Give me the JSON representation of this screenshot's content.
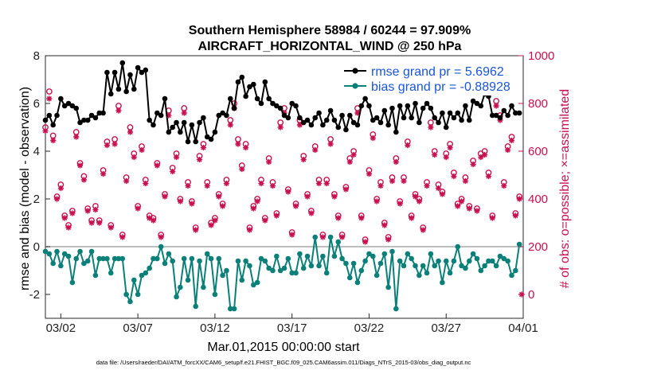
{
  "chart_data": {
    "type": "line",
    "title": "Southern Hemisphere 58984 / 60244 = 97.909%",
    "subtitle": "AIRCRAFT_HORIZONTAL_WIND @ 250 hPa",
    "xlabel": "Mar.01,2015 00:00:00 start",
    "ylabel": "rmse and bias (model - observation)",
    "ylabel_right": "# of obs: o=possible; ×=assimilated",
    "footer": "data file: /Users/raeder/DAI/ATM_forcXX/CAM6_setup/f.e21.FHIST_BGC.f09_025.CAM6assim.011/Diags_NTrS_2015-03/obs_diag_output.nc",
    "xlim": [
      0,
      31
    ],
    "ylim": [
      -3,
      8
    ],
    "ylim_right": [
      -100,
      1000
    ],
    "x_ticks": [
      1,
      6,
      11,
      16,
      21,
      26,
      31
    ],
    "x_tick_labels": [
      "03/02",
      "03/07",
      "03/12",
      "03/17",
      "03/22",
      "03/27",
      "04/01"
    ],
    "y_ticks": [
      -2,
      0,
      2,
      4,
      6,
      8
    ],
    "y_tick_labels": [
      "-2",
      "0",
      "2",
      "4",
      "6",
      "8"
    ],
    "y_right_ticks": [
      0,
      200,
      400,
      600,
      800,
      1000
    ],
    "y_right_tick_labels": [
      "0",
      "200",
      "400",
      "600",
      "800",
      "1000"
    ],
    "zero_line": 0,
    "legend_position": "top-right",
    "colors": {
      "rmse": "#000000",
      "bias": "#0b8078",
      "obs": "#c8104f",
      "legend_text": "#1a55d6",
      "zero_line": "#a8a8a8"
    },
    "series": [
      {
        "name": "rmse",
        "legend_label": "rmse grand pr = 5.6962",
        "x": [
          0.0,
          0.25,
          0.5,
          0.75,
          1.0,
          1.25,
          1.5,
          1.75,
          2.0,
          2.25,
          2.5,
          2.75,
          3.0,
          3.25,
          3.5,
          3.75,
          4.0,
          4.25,
          4.5,
          4.75,
          5.0,
          5.25,
          5.5,
          5.75,
          6.0,
          6.25,
          6.5,
          6.75,
          7.0,
          7.25,
          7.5,
          7.75,
          8.0,
          8.25,
          8.5,
          8.75,
          9.0,
          9.25,
          9.5,
          9.75,
          10.0,
          10.25,
          10.5,
          10.75,
          11.0,
          11.25,
          11.5,
          11.75,
          12.0,
          12.25,
          12.5,
          12.75,
          13.0,
          13.25,
          13.5,
          13.75,
          14.0,
          14.25,
          14.5,
          14.75,
          15.0,
          15.25,
          15.5,
          15.75,
          16.0,
          16.25,
          16.5,
          16.75,
          17.0,
          17.25,
          17.5,
          17.75,
          18.0,
          18.25,
          18.5,
          18.75,
          19.0,
          19.25,
          19.5,
          19.75,
          20.0,
          20.25,
          20.5,
          20.75,
          21.0,
          21.25,
          21.5,
          21.75,
          22.0,
          22.25,
          22.5,
          22.75,
          23.0,
          23.25,
          23.5,
          23.75,
          24.0,
          24.25,
          24.5,
          24.75,
          25.0,
          25.25,
          25.5,
          25.75,
          26.0,
          26.25,
          26.5,
          26.75,
          27.0,
          27.25,
          27.5,
          27.75,
          28.0,
          28.25,
          28.5,
          28.75,
          29.0,
          29.25,
          29.5,
          29.75,
          30.0,
          30.25,
          30.5,
          30.75
        ],
        "y": [
          5.3,
          5.5,
          5.1,
          5.5,
          6.2,
          5.9,
          6.0,
          5.9,
          5.8,
          5.2,
          5.3,
          5.3,
          5.5,
          5.4,
          5.6,
          5.6,
          7.3,
          6.4,
          7.3,
          6.6,
          7.7,
          6.5,
          7.2,
          6.6,
          7.5,
          7.3,
          7.4,
          5.3,
          5.1,
          5.6,
          5.5,
          6.2,
          4.8,
          5.0,
          5.2,
          4.8,
          5.2,
          4.4,
          5.1,
          4.4,
          5.2,
          5.4,
          4.6,
          4.5,
          4.8,
          5.5,
          5.6,
          5.5,
          6.2,
          5.8,
          6.9,
          7.1,
          6.3,
          6.7,
          6.8,
          6.2,
          6.0,
          6.9,
          6.2,
          6.0,
          5.9,
          5.8,
          5.5,
          5.4,
          6.0,
          5.9,
          5.4,
          5.2,
          5.3,
          5.1,
          5.4,
          5.6,
          5.1,
          5.3,
          5.7,
          5.3,
          5.0,
          5.5,
          4.9,
          5.5,
          5.2,
          5.1,
          5.9,
          6.2,
          5.9,
          5.3,
          5.4,
          5.2,
          5.7,
          5.1,
          5.8,
          4.8,
          5.9,
          5.4,
          5.9,
          5.4,
          6.0,
          5.2,
          5.8,
          6.0,
          5.8,
          5.4,
          5.2,
          5.6,
          5.0,
          5.6,
          5.4,
          5.6,
          5.3,
          5.9,
          5.3,
          6.1,
          6.0,
          5.9,
          6.4,
          6.3,
          5.5,
          5.5,
          5.4,
          5.7,
          5.5,
          5.9,
          5.6,
          5.6
        ],
        "marker": "filled-circle"
      },
      {
        "name": "bias",
        "legend_label": "bias grand pr = -0.88928",
        "x": [
          0.0,
          0.25,
          0.5,
          0.75,
          1.0,
          1.25,
          1.5,
          1.75,
          2.0,
          2.25,
          2.5,
          2.75,
          3.0,
          3.25,
          3.5,
          3.75,
          4.0,
          4.25,
          4.5,
          4.75,
          5.0,
          5.25,
          5.5,
          5.75,
          6.0,
          6.25,
          6.5,
          6.75,
          7.0,
          7.25,
          7.5,
          7.75,
          8.0,
          8.25,
          8.5,
          8.75,
          9.0,
          9.25,
          9.5,
          9.75,
          10.0,
          10.25,
          10.5,
          10.75,
          11.0,
          11.25,
          11.5,
          11.75,
          12.0,
          12.25,
          12.5,
          12.75,
          13.0,
          13.25,
          13.5,
          13.75,
          14.0,
          14.25,
          14.5,
          14.75,
          15.0,
          15.25,
          15.5,
          15.75,
          16.0,
          16.25,
          16.5,
          16.75,
          17.0,
          17.25,
          17.5,
          17.75,
          18.0,
          18.25,
          18.5,
          18.75,
          19.0,
          19.25,
          19.5,
          19.75,
          20.0,
          20.25,
          20.5,
          20.75,
          21.0,
          21.25,
          21.5,
          21.75,
          22.0,
          22.25,
          22.5,
          22.75,
          23.0,
          23.25,
          23.5,
          23.75,
          24.0,
          24.25,
          24.5,
          24.75,
          25.0,
          25.25,
          25.5,
          25.75,
          26.0,
          26.25,
          26.5,
          26.75,
          27.0,
          27.25,
          27.5,
          27.75,
          28.0,
          28.25,
          28.5,
          28.75,
          29.0,
          29.25,
          29.5,
          29.75,
          30.0,
          30.25,
          30.5,
          30.75
        ],
        "y": [
          -0.2,
          -0.3,
          -0.7,
          -0.2,
          -0.8,
          -0.3,
          -0.4,
          -1.5,
          -0.5,
          -0.2,
          -0.7,
          -0.6,
          -0.2,
          -1.2,
          -0.5,
          -0.5,
          -0.5,
          -1.1,
          -0.5,
          -0.5,
          -0.5,
          -2.0,
          -2.3,
          -1.4,
          -2.0,
          -1.2,
          -1.1,
          -0.9,
          -0.5,
          -0.5,
          0.0,
          -0.7,
          -0.3,
          -0.6,
          -2.1,
          -1.7,
          -0.5,
          -1.4,
          -0.5,
          -2.5,
          -0.6,
          -1.7,
          -0.3,
          -0.5,
          -2.0,
          -0.5,
          -1.2,
          -1.0,
          -2.6,
          -2.6,
          -0.6,
          -1.4,
          -0.6,
          -0.8,
          -1.6,
          -1.5,
          -0.5,
          -0.6,
          -0.9,
          -1.0,
          -0.4,
          -1.0,
          -0.9,
          -0.5,
          -1.1,
          -1.1,
          -0.3,
          -0.9,
          -0.4,
          -0.8,
          0.4,
          -0.8,
          -0.4,
          -1.1,
          0.4,
          -0.4,
          0.2,
          -0.5,
          -0.7,
          -1.3,
          -0.7,
          -1.5,
          -1.0,
          -0.6,
          -0.3,
          -0.4,
          -1.2,
          -0.7,
          -0.3,
          -1.7,
          -0.2,
          -2.6,
          -0.6,
          -0.8,
          -0.3,
          -0.5,
          -0.8,
          -1.2,
          -0.8,
          -1.1,
          -0.3,
          -0.8,
          -0.6,
          -1.5,
          -0.6,
          -1.1,
          -0.6,
          0.0,
          -0.8,
          -0.9,
          -0.6,
          -0.3,
          -0.5,
          -1.0,
          -0.8,
          -0.6,
          -0.6,
          -0.8,
          -0.4,
          -0.5,
          -0.6,
          -1.2,
          -1.0,
          0.1
        ],
        "marker": "filled-circle"
      },
      {
        "name": "obs possible",
        "axis": "right",
        "x": [
          0.0,
          0.25,
          0.5,
          0.75,
          1.0,
          1.25,
          1.5,
          1.75,
          2.0,
          2.25,
          2.5,
          2.75,
          3.0,
          3.25,
          3.5,
          3.75,
          4.0,
          4.25,
          4.5,
          4.75,
          5.0,
          5.25,
          5.5,
          5.75,
          6.0,
          6.25,
          6.5,
          6.75,
          7.0,
          7.25,
          7.5,
          7.75,
          8.0,
          8.25,
          8.5,
          8.75,
          9.0,
          9.25,
          9.5,
          9.75,
          10.0,
          10.25,
          10.5,
          10.75,
          11.0,
          11.25,
          11.5,
          11.75,
          12.0,
          12.25,
          12.5,
          12.75,
          13.0,
          13.25,
          13.5,
          13.75,
          14.0,
          14.25,
          14.5,
          14.75,
          15.0,
          15.25,
          15.5,
          15.75,
          16.0,
          16.25,
          16.5,
          16.75,
          17.0,
          17.25,
          17.5,
          17.75,
          18.0,
          18.25,
          18.5,
          18.75,
          19.0,
          19.25,
          19.5,
          19.75,
          20.0,
          20.25,
          20.5,
          20.75,
          21.0,
          21.25,
          21.5,
          21.75,
          22.0,
          22.25,
          22.5,
          22.75,
          23.0,
          23.25,
          23.5,
          23.75,
          24.0,
          24.25,
          24.5,
          24.75,
          25.0,
          25.25,
          25.5,
          25.75,
          26.0,
          26.25,
          26.5,
          26.75,
          27.0,
          27.25,
          27.5,
          27.75,
          28.0,
          28.25,
          28.5,
          28.75,
          29.0,
          29.25,
          29.5,
          29.75,
          30.0,
          30.25,
          30.5,
          30.75
        ],
        "y": [
          700,
          850,
          665,
          410,
          460,
          330,
          290,
          350,
          680,
          550,
          495,
          360,
          310,
          370,
          310,
          520,
          640,
          290,
          650,
          790,
          250,
          490,
          700,
          590,
          370,
          620,
          480,
          330,
          320,
          550,
          250,
          420,
          770,
          530,
          590,
          400,
          780,
          470,
          390,
          280,
          580,
          630,
          470,
          300,
          320,
          420,
          380,
          480,
          730,
          800,
          650,
          540,
          630,
          280,
          370,
          400,
          480,
          320,
          570,
          470,
          340,
          720,
          780,
          440,
          260,
          380,
          730,
          580,
          420,
          350,
          620,
          480,
          250,
          480,
          650,
          420,
          330,
          250,
          450,
          570,
          600,
          780,
          330,
          230,
          520,
          670,
          400,
          470,
          300,
          240,
          490,
          570,
          390,
          490,
          640,
          330,
          420,
          400,
          280,
          470,
          720,
          600,
          460,
          430,
          590,
          630,
          510,
          380,
          400,
          490,
          370,
          560,
          360,
          590,
          600,
          510,
          330,
          810,
          750,
          470,
          620,
          660,
          340,
          410
        ],
        "marker": "open-circle"
      },
      {
        "name": "obs assimilated",
        "axis": "right",
        "x": [
          0.0,
          0.25,
          0.5,
          0.75,
          1.0,
          1.25,
          1.5,
          1.75,
          2.0,
          2.25,
          2.5,
          2.75,
          3.0,
          3.25,
          3.5,
          3.75,
          4.0,
          4.25,
          4.5,
          4.75,
          5.0,
          5.25,
          5.5,
          5.75,
          6.0,
          6.25,
          6.5,
          6.75,
          7.0,
          7.25,
          7.5,
          7.75,
          8.0,
          8.25,
          8.5,
          8.75,
          9.0,
          9.25,
          9.5,
          9.75,
          10.0,
          10.25,
          10.5,
          10.75,
          11.0,
          11.25,
          11.5,
          11.75,
          12.0,
          12.25,
          12.5,
          12.75,
          13.0,
          13.25,
          13.5,
          13.75,
          14.0,
          14.25,
          14.5,
          14.75,
          15.0,
          15.25,
          15.5,
          15.75,
          16.0,
          16.25,
          16.5,
          16.75,
          17.0,
          17.25,
          17.5,
          17.75,
          18.0,
          18.25,
          18.5,
          18.75,
          19.0,
          19.25,
          19.5,
          19.75,
          20.0,
          20.25,
          20.5,
          20.75,
          21.0,
          21.25,
          21.5,
          21.75,
          22.0,
          22.25,
          22.5,
          22.75,
          23.0,
          23.25,
          23.5,
          23.75,
          24.0,
          24.25,
          24.5,
          24.75,
          25.0,
          25.25,
          25.5,
          25.75,
          26.0,
          26.25,
          26.5,
          26.75,
          27.0,
          27.25,
          27.5,
          27.75,
          28.0,
          28.25,
          28.5,
          28.75,
          29.0,
          29.25,
          29.5,
          29.75,
          30.0,
          30.25,
          30.5,
          30.75
        ],
        "y": [
          685,
          820,
          645,
          400,
          445,
          320,
          280,
          340,
          660,
          540,
          480,
          350,
          300,
          355,
          300,
          505,
          625,
          280,
          630,
          770,
          240,
          475,
          680,
          575,
          360,
          605,
          465,
          320,
          310,
          540,
          240,
          410,
          750,
          515,
          575,
          390,
          760,
          455,
          380,
          270,
          565,
          615,
          455,
          290,
          310,
          410,
          370,
          465,
          710,
          780,
          630,
          525,
          615,
          270,
          360,
          390,
          465,
          310,
          555,
          455,
          330,
          700,
          760,
          430,
          250,
          370,
          710,
          565,
          410,
          340,
          605,
          465,
          240,
          465,
          630,
          410,
          320,
          240,
          440,
          555,
          585,
          760,
          320,
          220,
          505,
          655,
          390,
          455,
          290,
          230,
          475,
          555,
          380,
          475,
          625,
          320,
          410,
          390,
          270,
          455,
          700,
          585,
          445,
          420,
          575,
          615,
          495,
          370,
          390,
          475,
          360,
          545,
          350,
          575,
          585,
          495,
          320,
          790,
          730,
          455,
          605,
          645,
          330,
          400
        ],
        "marker": "asterisk"
      },
      {
        "name": "obs edge",
        "axis": "right",
        "x": [
          30.9
        ],
        "y": [
          0
        ],
        "marker": "asterisk"
      }
    ]
  }
}
